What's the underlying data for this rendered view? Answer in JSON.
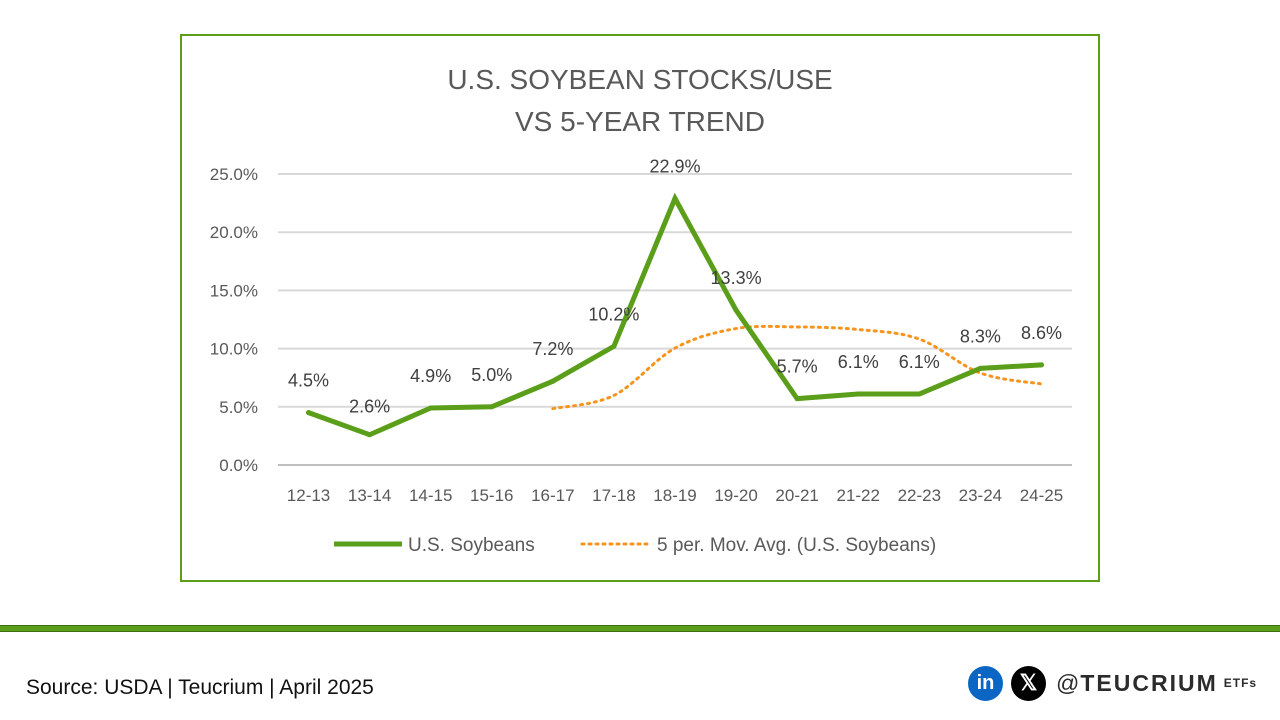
{
  "chart_data": {
    "type": "line",
    "title_lines": [
      "U.S. SOYBEAN STOCKS/USE",
      "VS 5-YEAR TREND"
    ],
    "categories": [
      "12-13",
      "13-14",
      "14-15",
      "15-16",
      "16-17",
      "17-18",
      "18-19",
      "19-20",
      "20-21",
      "21-22",
      "22-23",
      "23-24",
      "24-25"
    ],
    "series": [
      {
        "name": "U.S. Soybeans",
        "values": [
          4.5,
          2.6,
          4.9,
          5.0,
          7.2,
          10.2,
          22.9,
          13.3,
          5.7,
          6.1,
          6.1,
          8.3,
          8.6
        ],
        "labels": [
          "4.5%",
          "2.6%",
          "4.9%",
          "5.0%",
          "7.2%",
          "10.2%",
          "22.9%",
          "13.3%",
          "5.7%",
          "6.1%",
          "6.1%",
          "8.3%",
          "8.6%"
        ],
        "color": "#5a9e1a",
        "style": "solid"
      },
      {
        "name": "5 per. Mov. Avg. (U.S. Soybeans)",
        "values": [
          null,
          null,
          null,
          null,
          4.84,
          5.98,
          10.04,
          11.72,
          11.86,
          11.64,
          10.82,
          7.9,
          6.96
        ],
        "color": "#f7941d",
        "style": "dotted"
      }
    ],
    "y_ticks": [
      "0.0%",
      "5.0%",
      "10.0%",
      "15.0%",
      "20.0%",
      "25.0%"
    ],
    "ylim": [
      0,
      25
    ],
    "grid": true,
    "legend_position": "bottom"
  },
  "footer": {
    "source": "Source: USDA | Teucrium | April 2025",
    "linkedin_glyph": "in",
    "x_glyph": "𝕏",
    "handle_prefix": "@",
    "handle_brand": "TEUCRIUM",
    "handle_suffix": "ETFs"
  },
  "colors": {
    "accent_green": "#5a9e1a",
    "trend_orange": "#f7941d",
    "linkedin_blue": "#0a66c2"
  }
}
